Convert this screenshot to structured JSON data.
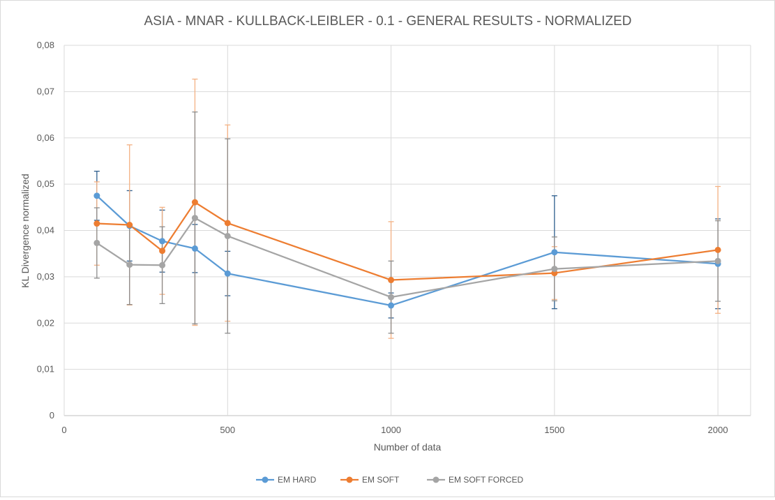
{
  "chart_data": {
    "type": "line",
    "title": "ASIA - MNAR - KULLBACK-LEIBLER - 0.1 - GENERAL RESULTS - NORMALIZED",
    "xlabel": "Number of data",
    "ylabel": "KL Divergence normalized",
    "xlim": [
      0,
      2100
    ],
    "ylim": [
      0,
      0.08
    ],
    "xticks": [
      0,
      500,
      1000,
      1500,
      2000
    ],
    "xtick_labels": [
      "0",
      "500",
      "1000",
      "1500",
      "2000"
    ],
    "yticks": [
      0,
      0.01,
      0.02,
      0.03,
      0.04,
      0.05,
      0.06,
      0.07,
      0.08
    ],
    "ytick_labels": [
      "0",
      "0,01",
      "0,02",
      "0,03",
      "0,04",
      "0,05",
      "0,06",
      "0,07",
      "0,08"
    ],
    "grid": true,
    "legend_position": "bottom",
    "x": [
      100,
      200,
      300,
      400,
      500,
      1000,
      1500,
      2000
    ],
    "series": [
      {
        "name": "EM HARD",
        "color": "#5b9bd5",
        "error_color": "#2e5e8e",
        "values": [
          0.0475,
          0.041,
          0.0377,
          0.0361,
          0.0307,
          0.0238,
          0.0353,
          0.0328
        ],
        "error": [
          0.0053,
          0.0076,
          0.0067,
          0.0052,
          0.0048,
          0.0027,
          0.0122,
          0.0097
        ]
      },
      {
        "name": "EM SOFT",
        "color": "#ed7d31",
        "error_color": "#f4b183",
        "values": [
          0.0415,
          0.0412,
          0.0356,
          0.0461,
          0.0416,
          0.0293,
          0.0308,
          0.0358
        ],
        "error": [
          0.009,
          0.0173,
          0.0094,
          0.0266,
          0.0212,
          0.0126,
          0.0057,
          0.0137
        ]
      },
      {
        "name": "EM SOFT FORCED",
        "color": "#a5a5a5",
        "error_color": "#8c8c8c",
        "values": [
          0.0373,
          0.0326,
          0.0325,
          0.0427,
          0.0388,
          0.0256,
          0.0317,
          0.0334
        ],
        "error": [
          0.0076,
          0.0086,
          0.0083,
          0.0229,
          0.021,
          0.0078,
          0.0069,
          0.0087
        ]
      }
    ]
  }
}
